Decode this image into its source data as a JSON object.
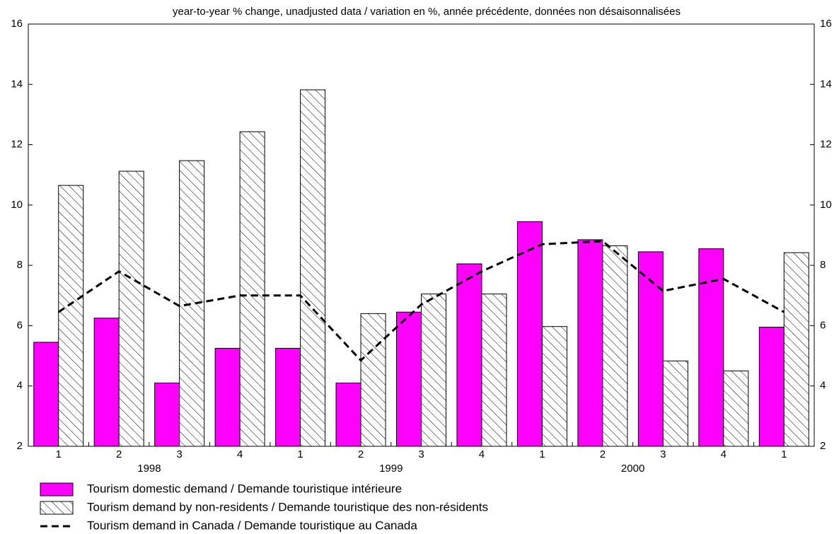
{
  "chart_data": {
    "type": "bar",
    "title": "year-to-year % change, unadjusted data / variation en %, année précédente, données non désaisonnalisées",
    "categories": [
      "1",
      "2",
      "3",
      "4",
      "1",
      "2",
      "3",
      "4",
      "1",
      "2",
      "3",
      "4",
      "1"
    ],
    "years": [
      "1998",
      "1999",
      "2000"
    ],
    "series": [
      {
        "name": "Tourism domestic demand / Demande touristique intérieure",
        "type": "bar",
        "color": "#ff00ff",
        "values": [
          5.45,
          6.25,
          4.1,
          5.25,
          5.25,
          4.1,
          6.45,
          8.05,
          9.45,
          8.85,
          8.45,
          8.55,
          5.95
        ]
      },
      {
        "name": "Tourism demand by non-residents / Demande touristique des non-résidents",
        "type": "bar",
        "color": "#ffffff",
        "hatch": "diagonal",
        "values": [
          10.65,
          11.12,
          11.47,
          12.43,
          13.82,
          6.4,
          7.05,
          7.05,
          5.97,
          8.65,
          4.83,
          4.5,
          8.42
        ]
      },
      {
        "name": "Tourism demand in Canada / Demande touristique au Canada",
        "type": "line",
        "color": "#000000",
        "dash": true,
        "values": [
          6.45,
          7.8,
          6.65,
          7.0,
          7.0,
          4.85,
          6.7,
          7.8,
          8.7,
          8.8,
          7.15,
          7.55,
          6.45
        ]
      }
    ],
    "ylim": [
      2,
      16
    ],
    "yticks": [
      2,
      4,
      6,
      8,
      10,
      12,
      14,
      16
    ],
    "y2lim": [
      2,
      16
    ],
    "y2ticks": [
      2,
      4,
      6,
      8,
      10,
      12,
      14,
      16
    ]
  }
}
